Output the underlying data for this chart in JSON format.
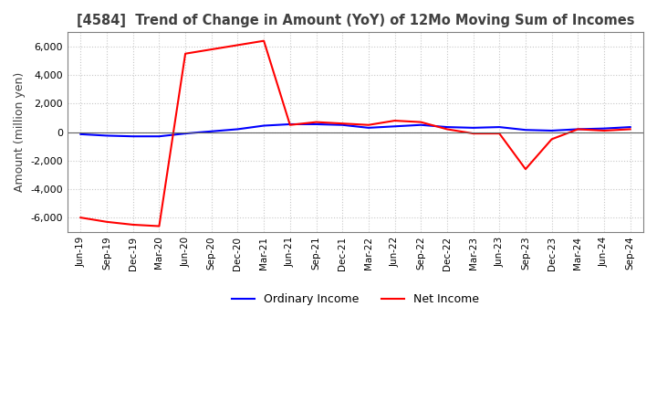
{
  "title": "[4584]  Trend of Change in Amount (YoY) of 12Mo Moving Sum of Incomes",
  "ylabel": "Amount (million yen)",
  "ylim": [
    -7000,
    7000
  ],
  "yticks": [
    -6000,
    -4000,
    -2000,
    0,
    2000,
    4000,
    6000
  ],
  "x_labels": [
    "Jun-19",
    "Sep-19",
    "Dec-19",
    "Mar-20",
    "Jun-20",
    "Sep-20",
    "Dec-20",
    "Mar-21",
    "Jun-21",
    "Sep-21",
    "Dec-21",
    "Mar-22",
    "Jun-22",
    "Sep-22",
    "Dec-22",
    "Mar-23",
    "Jun-23",
    "Sep-23",
    "Dec-23",
    "Mar-24",
    "Jun-24",
    "Sep-24"
  ],
  "ordinary_income": [
    -150,
    -250,
    -300,
    -300,
    -100,
    50,
    200,
    450,
    550,
    550,
    500,
    300,
    400,
    500,
    350,
    300,
    350,
    150,
    100,
    200,
    250,
    350
  ],
  "net_income": [
    -6000,
    -6300,
    -6500,
    -6600,
    5500,
    5800,
    6100,
    6400,
    500,
    700,
    600,
    500,
    800,
    700,
    200,
    -100,
    -100,
    -2600,
    -500,
    200,
    100,
    200
  ],
  "ordinary_color": "#0000ff",
  "net_color": "#ff0000",
  "grid_color": "#c8c8c8",
  "background_color": "#ffffff",
  "title_color": "#404040"
}
